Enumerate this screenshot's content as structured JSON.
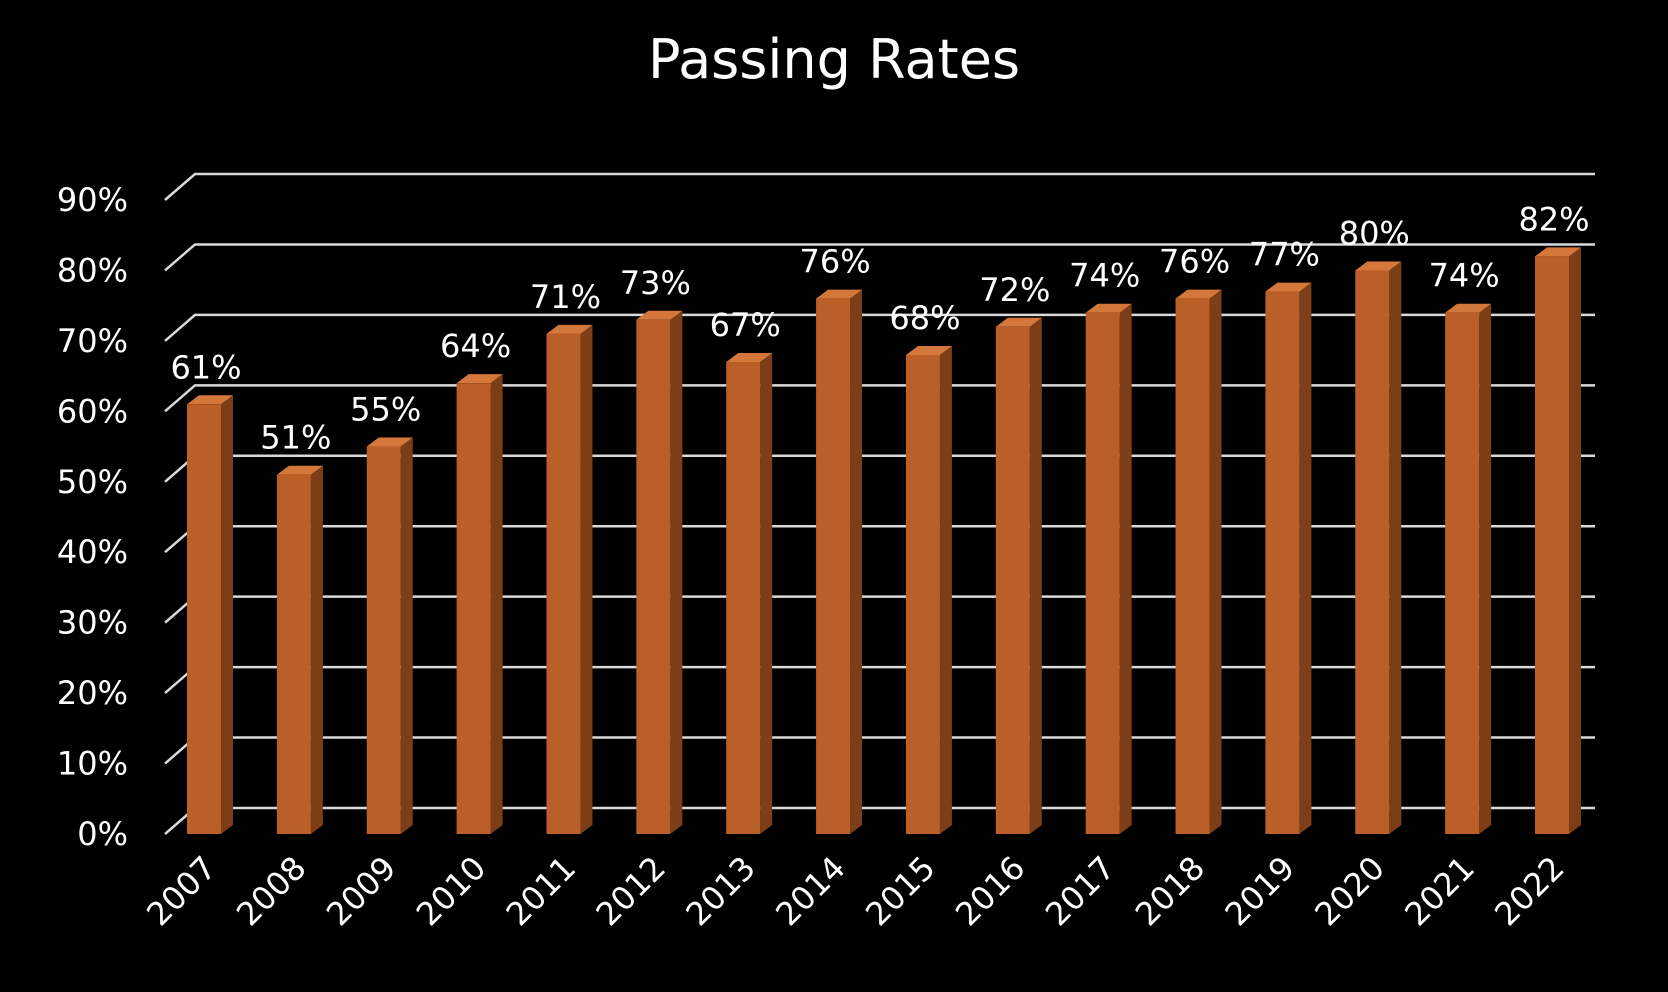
{
  "chart_data": {
    "type": "bar",
    "title": "Passing Rates",
    "categories": [
      "2007",
      "2008",
      "2009",
      "2010",
      "2011",
      "2012",
      "2013",
      "2014",
      "2015",
      "2016",
      "2017",
      "2018",
      "2019",
      "2020",
      "2021",
      "2022"
    ],
    "values": [
      61,
      51,
      55,
      64,
      71,
      73,
      67,
      76,
      68,
      72,
      74,
      76,
      77,
      80,
      74,
      82
    ],
    "data_labels": [
      "61%",
      "51%",
      "55%",
      "64%",
      "71%",
      "73%",
      "67%",
      "76%",
      "68%",
      "72%",
      "74%",
      "76%",
      "77%",
      "80%",
      "74%",
      "82%"
    ],
    "yticks": [
      0,
      10,
      20,
      30,
      40,
      50,
      60,
      70,
      80,
      90
    ],
    "ytick_labels": [
      "0%",
      "10%",
      "20%",
      "30%",
      "40%",
      "50%",
      "60%",
      "70%",
      "80%",
      "90%"
    ],
    "ylim": [
      0,
      90
    ],
    "xlabel": "",
    "ylabel": "",
    "grid": true,
    "legend": "none",
    "style": "3d-column"
  },
  "colors": {
    "background": "#000000",
    "bar_front": "#bb5f28",
    "bar_side": "#7d3d17",
    "bar_top": "#d4773b",
    "grid": "#d9d9d9",
    "text": "#ffffff"
  }
}
